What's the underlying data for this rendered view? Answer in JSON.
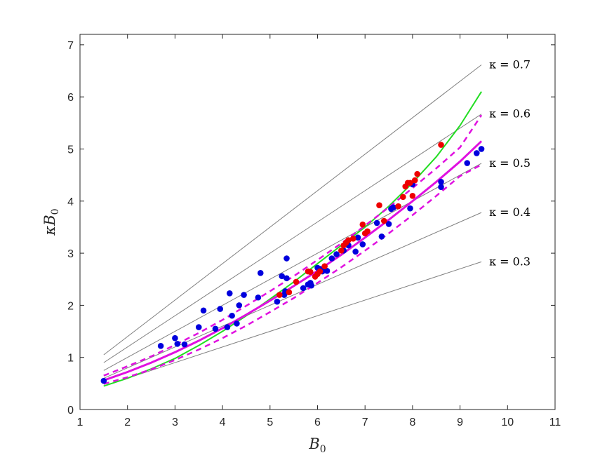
{
  "chart_data": {
    "type": "scatter",
    "title": "",
    "xlabel": "B",
    "xlabel_sub": "0",
    "ylabel": "κB",
    "ylabel_sub": "0",
    "xlim": [
      1,
      11
    ],
    "ylim": [
      0,
      7.2
    ],
    "xticks": [
      1,
      2,
      3,
      4,
      5,
      6,
      7,
      8,
      9,
      10,
      11
    ],
    "yticks": [
      0,
      1,
      2,
      3,
      4,
      5,
      6,
      7
    ],
    "grid": false,
    "kappa_lines": {
      "color": "#808080",
      "x": [
        1.5,
        9.45
      ],
      "series": [
        {
          "label": "κ = 0.7",
          "k": 0.7
        },
        {
          "label": "κ = 0.6",
          "k": 0.6
        },
        {
          "label": "κ = 0.5",
          "k": 0.5
        },
        {
          "label": "κ = 0.4",
          "k": 0.4
        },
        {
          "label": "κ = 0.3",
          "k": 0.3
        }
      ]
    },
    "curves": [
      {
        "style": "green-solid",
        "color": "#22dd22",
        "x": [
          1.5,
          2,
          2.5,
          3,
          3.5,
          4,
          4.5,
          5,
          5.5,
          6,
          6.5,
          7,
          7.5,
          8,
          8.5,
          9,
          9.45
        ],
        "y": [
          0.45,
          0.6,
          0.78,
          0.98,
          1.23,
          1.5,
          1.8,
          2.12,
          2.45,
          2.8,
          3.15,
          3.5,
          3.9,
          4.35,
          4.85,
          5.45,
          6.1
        ]
      },
      {
        "style": "magenta-solid",
        "color": "#e010e0",
        "x": [
          1.5,
          2,
          2.5,
          3,
          3.5,
          4,
          4.5,
          5,
          5.5,
          6,
          6.5,
          7,
          7.5,
          8,
          8.5,
          9,
          9.45
        ],
        "y": [
          0.56,
          0.72,
          0.9,
          1.1,
          1.32,
          1.56,
          1.82,
          2.09,
          2.37,
          2.66,
          2.97,
          3.3,
          3.64,
          4.0,
          4.37,
          4.76,
          5.15
        ]
      },
      {
        "style": "magenta-dashed-upper",
        "color": "#e010e0",
        "x": [
          1.5,
          2,
          2.5,
          3,
          3.5,
          4,
          4.5,
          5,
          5.5,
          6,
          6.5,
          7,
          7.5,
          8,
          8.5,
          9,
          9.45
        ],
        "y": [
          0.65,
          0.83,
          1.02,
          1.24,
          1.47,
          1.72,
          1.99,
          2.27,
          2.56,
          2.87,
          3.19,
          3.53,
          3.88,
          4.25,
          4.63,
          5.03,
          5.65
        ]
      },
      {
        "style": "magenta-dashed-lower",
        "color": "#e010e0",
        "x": [
          1.5,
          2,
          2.5,
          3,
          3.5,
          4,
          4.5,
          5,
          5.5,
          6,
          6.5,
          7,
          7.5,
          8,
          8.5,
          9,
          9.45
        ],
        "y": [
          0.49,
          0.62,
          0.77,
          0.95,
          1.15,
          1.37,
          1.61,
          1.87,
          2.14,
          2.43,
          2.73,
          3.05,
          3.38,
          3.73,
          4.1,
          4.48,
          4.7
        ]
      }
    ],
    "series": [
      {
        "color": "#0000dd",
        "points": [
          [
            1.5,
            0.55
          ],
          [
            2.7,
            1.22
          ],
          [
            3.0,
            1.37
          ],
          [
            3.05,
            1.26
          ],
          [
            3.2,
            1.25
          ],
          [
            3.5,
            1.58
          ],
          [
            3.6,
            1.9
          ],
          [
            3.85,
            1.55
          ],
          [
            3.95,
            1.93
          ],
          [
            4.1,
            1.58
          ],
          [
            4.15,
            2.23
          ],
          [
            4.2,
            1.8
          ],
          [
            4.3,
            1.65
          ],
          [
            4.35,
            2.0
          ],
          [
            4.45,
            2.2
          ],
          [
            4.75,
            2.15
          ],
          [
            4.8,
            2.62
          ],
          [
            5.15,
            2.07
          ],
          [
            5.25,
            2.56
          ],
          [
            5.3,
            2.2
          ],
          [
            5.32,
            2.27
          ],
          [
            5.35,
            2.9
          ],
          [
            5.35,
            2.52
          ],
          [
            5.7,
            2.33
          ],
          [
            5.8,
            2.4
          ],
          [
            5.85,
            2.43
          ],
          [
            5.87,
            2.38
          ],
          [
            6.0,
            2.72
          ],
          [
            6.05,
            2.7
          ],
          [
            6.1,
            2.65
          ],
          [
            6.15,
            2.68
          ],
          [
            6.2,
            2.66
          ],
          [
            6.3,
            2.9
          ],
          [
            6.4,
            2.98
          ],
          [
            6.55,
            3.05
          ],
          [
            6.65,
            3.15
          ],
          [
            6.8,
            3.03
          ],
          [
            6.85,
            3.3
          ],
          [
            6.95,
            3.17
          ],
          [
            7.25,
            3.58
          ],
          [
            7.35,
            3.32
          ],
          [
            7.5,
            3.56
          ],
          [
            7.55,
            3.85
          ],
          [
            7.6,
            3.88
          ],
          [
            7.95,
            3.86
          ],
          [
            8.0,
            4.32
          ],
          [
            8.6,
            4.37
          ],
          [
            8.6,
            4.27
          ],
          [
            9.15,
            4.73
          ],
          [
            9.35,
            4.92
          ],
          [
            9.45,
            5.0
          ]
        ]
      },
      {
        "color": "#ee0000",
        "points": [
          [
            5.2,
            2.2
          ],
          [
            5.4,
            2.25
          ],
          [
            5.55,
            2.45
          ],
          [
            5.8,
            2.65
          ],
          [
            5.85,
            2.64
          ],
          [
            5.95,
            2.55
          ],
          [
            6.0,
            2.6
          ],
          [
            6.05,
            2.65
          ],
          [
            6.15,
            2.75
          ],
          [
            6.5,
            3.05
          ],
          [
            6.55,
            3.15
          ],
          [
            6.6,
            3.2
          ],
          [
            6.65,
            3.25
          ],
          [
            6.75,
            3.28
          ],
          [
            6.95,
            3.55
          ],
          [
            7.0,
            3.38
          ],
          [
            7.05,
            3.42
          ],
          [
            7.3,
            3.92
          ],
          [
            7.4,
            3.62
          ],
          [
            7.7,
            3.9
          ],
          [
            7.8,
            4.08
          ],
          [
            7.85,
            4.28
          ],
          [
            7.9,
            4.35
          ],
          [
            7.95,
            4.35
          ],
          [
            8.0,
            4.1
          ],
          [
            8.05,
            4.4
          ],
          [
            8.1,
            4.52
          ],
          [
            8.6,
            5.08
          ]
        ]
      }
    ]
  }
}
